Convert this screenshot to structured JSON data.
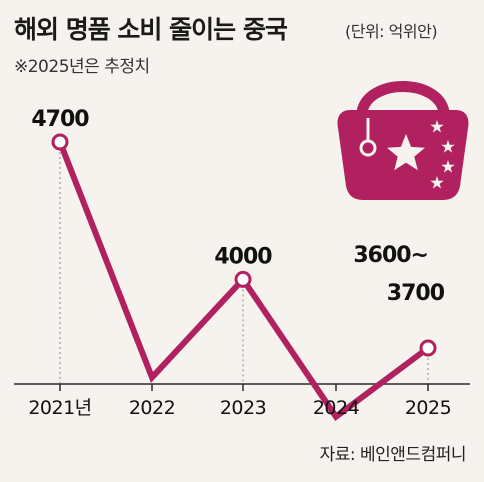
{
  "header": {
    "title": "해외 명품 소비 줄이는 중국",
    "unit": "(단위: 억위안)",
    "note": "※2025년은 추정치"
  },
  "footer": {
    "source": "자료: 베인앤드컴퍼니"
  },
  "colors": {
    "line": "#b2215f",
    "marker_fill": "#ffffff",
    "bag": "#b2215f",
    "background": "#f6f3ee"
  },
  "icons": [
    "handbag-icon",
    "star-icon"
  ],
  "chart_data": {
    "type": "line",
    "title": "해외 명품 소비 줄이는 중국",
    "xlabel": "",
    "ylabel": "",
    "categories": [
      "2021년",
      "2022",
      "2023",
      "2024",
      "2025"
    ],
    "series": [
      {
        "values": [
          4700,
          3500,
          4000,
          3300,
          3650
        ]
      }
    ],
    "data_labels": [
      {
        "category": "2021년",
        "text": "4700"
      },
      {
        "category": "2023",
        "text": "4000"
      },
      {
        "category": "2025",
        "text_line1": "3600~",
        "text_line2": "3700"
      }
    ],
    "marked_points": [
      "2021년",
      "2023",
      "2025"
    ],
    "ylim": [
      3100,
      4900
    ],
    "grid": false,
    "legend": "none"
  }
}
